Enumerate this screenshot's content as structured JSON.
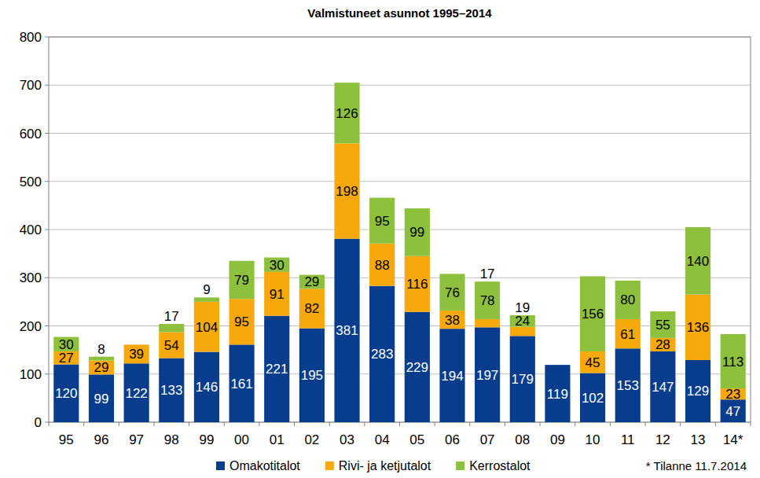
{
  "chart_data": {
    "type": "bar",
    "title": "Valmistuneet asunnot 1995–2014",
    "categories": [
      "95",
      "96",
      "97",
      "98",
      "99",
      "00",
      "01",
      "02",
      "03",
      "04",
      "05",
      "06",
      "07",
      "08",
      "09",
      "10",
      "11",
      "12",
      "13",
      "14*"
    ],
    "series": [
      {
        "name": "Omakotitalot",
        "color": "#083c8c",
        "values": [
          120,
          99,
          122,
          133,
          146,
          161,
          221,
          195,
          381,
          283,
          229,
          194,
          197,
          179,
          119,
          102,
          153,
          147,
          129,
          47
        ]
      },
      {
        "name": "Rivi- ja ketjutalot",
        "color": "#f7a80a",
        "values": [
          27,
          29,
          39,
          54,
          104,
          95,
          91,
          82,
          198,
          88,
          116,
          38,
          17,
          19,
          null,
          45,
          61,
          28,
          136,
          23
        ]
      },
      {
        "name": "Kerrostalot",
        "color": "#8dc03c",
        "values": [
          30,
          8,
          null,
          17,
          9,
          79,
          30,
          29,
          126,
          95,
          99,
          76,
          78,
          24,
          null,
          156,
          80,
          55,
          140,
          113
        ]
      }
    ],
    "ylim": [
      0,
      800
    ],
    "yticks": [
      0,
      100,
      200,
      300,
      400,
      500,
      600,
      700,
      800
    ],
    "grid": true,
    "stacked": true,
    "data_labels": true,
    "legend": "bottom",
    "annotations": [
      "* Tilanne 11.7.2014"
    ]
  }
}
